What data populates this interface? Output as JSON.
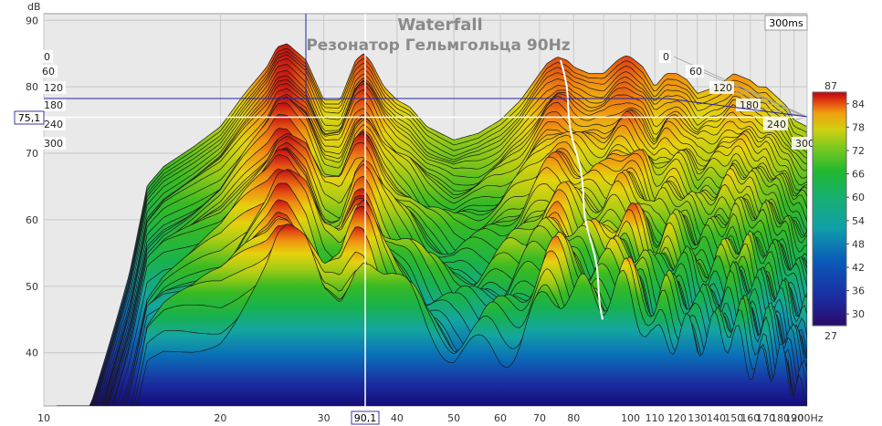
{
  "chart_data": {
    "type": "area",
    "title": "Waterfall",
    "subtitle": "Резонатор Гельмгольца 90Hz",
    "ylabel": "dB",
    "xlabel": "Hz",
    "x_scale": "log",
    "xlim": [
      10,
      200
    ],
    "ylim": [
      32,
      91
    ],
    "x_ticks": [
      "10",
      "20",
      "30",
      "40",
      "50",
      "60",
      "70",
      "80",
      "90",
      "100",
      "110",
      "120",
      "130",
      "140",
      "150",
      "160",
      "170",
      "180",
      "190",
      "200Hz"
    ],
    "y_ticks": [
      "90",
      "80",
      "70",
      "60",
      "50",
      "40"
    ],
    "time_axis_label": "300ms",
    "time_ticks": [
      "0",
      "60",
      "120",
      "180",
      "240",
      "300"
    ],
    "grid": true,
    "cursor": {
      "x_label": "90,1",
      "y_label": "75,1",
      "x": 90.1,
      "y": 75.1
    },
    "colorbar": {
      "min": 27,
      "max": 87,
      "ticks": [
        "84",
        "78",
        "72",
        "66",
        "60",
        "54",
        "48",
        "42",
        "36",
        "30"
      ]
    },
    "front_series": {
      "name": "0 ms",
      "x": [
        14,
        16,
        18,
        20,
        22,
        24,
        25,
        26,
        28,
        30,
        32,
        34,
        35,
        36,
        38,
        40,
        42,
        45,
        50,
        55,
        60,
        65,
        70,
        72,
        75,
        78,
        80,
        85,
        90,
        95,
        98,
        100,
        105,
        110,
        115,
        120,
        125,
        130,
        140,
        150,
        160,
        165,
        170,
        175,
        180,
        185,
        190,
        200
      ],
      "values": [
        62,
        68,
        71,
        74,
        79,
        83,
        86,
        86.5,
        84,
        78,
        78,
        84,
        85,
        84,
        80,
        78,
        77,
        74,
        72,
        73,
        75,
        78,
        82,
        83.5,
        84.5,
        84,
        83,
        82,
        82,
        84,
        84.7,
        84.5,
        83,
        80,
        82,
        82,
        81,
        79,
        80,
        82,
        81,
        80,
        80,
        79,
        78,
        77,
        75,
        74
      ]
    },
    "colors": [
      "#2a0a6a",
      "#1a2ca0",
      "#0a5cb8",
      "#10a0a8",
      "#18b070",
      "#20b830",
      "#7ac820",
      "#d0d010",
      "#f0a010",
      "#e04010",
      "#c00010"
    ]
  }
}
